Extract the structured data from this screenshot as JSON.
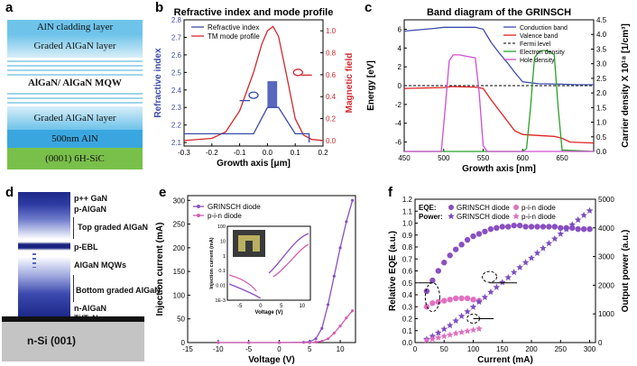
{
  "panel_a": {
    "label": "a",
    "layers": [
      "AlN cladding layer",
      "Graded AlGaN layer",
      "AlGaN/ AlGaN MQW",
      "Graded AlGaN layer",
      "500nm AlN",
      "(0001) 6H-SiC"
    ]
  },
  "panel_d": {
    "label": "d",
    "layers": [
      "p++ GaN",
      "p-AlGaN",
      "Top graded AlGaN",
      "p-EBL",
      "AlGaN MQWs",
      "Bottom graded AlGaN",
      "n-AlGaN",
      "Ti/TaN",
      "n-Si (001)"
    ]
  },
  "chart_data": [
    {
      "panel": "b",
      "type": "line",
      "title": "Refractive index and mode profile",
      "xlabel": "Growth axis [μm]",
      "ylabel": "Refractive index",
      "y2label": "Magnetic field",
      "xlim": [
        -0.3,
        0.2
      ],
      "ylim": [
        2.08,
        2.8
      ],
      "y2lim": [
        -0.05,
        1.1
      ],
      "xticks": [
        "-0.3",
        "-0.2",
        "-0.1",
        "0.0",
        "0.1",
        "0.2"
      ],
      "yticks": [
        "2.1",
        "2.2",
        "2.3",
        "2.4",
        "2.5",
        "2.6",
        "2.7",
        "2.8"
      ],
      "y2ticks": [
        "0.0",
        "0.2",
        "0.4",
        "0.6",
        "0.8",
        "1.0"
      ],
      "legend": [
        "Refractive index",
        "TM mode profile"
      ],
      "series": [
        {
          "name": "Refractive index",
          "axis": "left",
          "color": "#3a4aa8",
          "x": [
            -0.3,
            -0.05,
            0.0,
            0.0,
            0.04,
            0.04,
            0.1,
            0.15,
            0.15
          ],
          "y": [
            2.15,
            2.15,
            2.3,
            2.3,
            2.3,
            2.3,
            2.15,
            2.15,
            2.1
          ]
        },
        {
          "name": "TM mode profile",
          "axis": "right",
          "color": "#d0282e",
          "x": [
            -0.3,
            -0.2,
            -0.15,
            -0.1,
            -0.05,
            -0.02,
            0.0,
            0.02,
            0.04,
            0.07,
            0.1,
            0.13,
            0.16,
            0.2
          ],
          "y": [
            0.0,
            0.02,
            0.08,
            0.27,
            0.62,
            0.88,
            1.0,
            1.04,
            0.95,
            0.58,
            0.2,
            0.05,
            0.01,
            0.0
          ]
        }
      ]
    },
    {
      "panel": "c",
      "type": "line",
      "title": "Band diagram of the GRINSCH",
      "xlabel": "Growth axis [nm]",
      "ylabel": "Energy [eV]",
      "y2label": "Carrier density X 10¹⁸ [1/cm³]",
      "xlim": [
        450,
        690
      ],
      "ylim": [
        -7,
        7
      ],
      "y2lim": [
        0,
        4.5
      ],
      "xticks": [
        "450",
        "500",
        "550",
        "600",
        "650"
      ],
      "yticks": [
        "-6",
        "-4",
        "-2",
        "0",
        "2",
        "4",
        "6"
      ],
      "y2ticks": [
        "0.0",
        "0.5",
        "1.0",
        "1.5",
        "2.0",
        "2.5",
        "3.0",
        "3.5",
        "4.0",
        "4.5"
      ],
      "legend": [
        "Conduction band",
        "Valence band",
        "Fermi level",
        "Electron density",
        "Hole density"
      ],
      "series": [
        {
          "name": "Conduction band",
          "axis": "left",
          "color": "#3b4bb0",
          "x": [
            450,
            490,
            500,
            540,
            550,
            560,
            570,
            580,
            590,
            600,
            620,
            650,
            670,
            690
          ],
          "y": [
            5.8,
            6.1,
            6.2,
            6.2,
            6.0,
            4.6,
            3.5,
            2.5,
            1.4,
            0.4,
            0.2,
            0.15,
            0.1,
            0.1
          ]
        },
        {
          "name": "Valence band",
          "axis": "left",
          "color": "#e02020",
          "x": [
            450,
            500,
            510,
            540,
            550,
            560,
            570,
            580,
            590,
            600,
            620,
            640,
            650,
            660,
            690
          ],
          "y": [
            -0.3,
            -0.2,
            -0.1,
            -0.15,
            -0.3,
            -1.5,
            -2.6,
            -3.7,
            -4.8,
            -5.2,
            -5.3,
            -5.4,
            -5.6,
            -6.0,
            -6.1
          ]
        },
        {
          "name": "Fermi level",
          "axis": "left",
          "color": "#333333",
          "dashed": true,
          "x": [
            450,
            690
          ],
          "y": [
            0.0,
            0.0
          ]
        },
        {
          "name": "Electron density",
          "axis": "right",
          "color": "#2aa02a",
          "x": [
            450,
            600,
            605,
            610,
            615,
            620,
            625,
            630,
            635,
            640,
            645,
            650,
            690
          ],
          "y": [
            0.0,
            0.0,
            0.1,
            1.5,
            3.2,
            3.4,
            3.45,
            3.45,
            3.4,
            3.3,
            1.5,
            0.05,
            0.0
          ]
        },
        {
          "name": "Hole density",
          "axis": "right",
          "color": "#d04fd0",
          "x": [
            450,
            497,
            502,
            507,
            512,
            520,
            530,
            540,
            545,
            550,
            555,
            690
          ],
          "y": [
            0.0,
            0.0,
            1.5,
            3.1,
            3.3,
            3.3,
            3.25,
            3.2,
            2.0,
            0.2,
            0.0,
            0.0
          ]
        }
      ]
    },
    {
      "panel": "e",
      "type": "line",
      "xlabel": "Voltage (V)",
      "ylabel": "Injection current (mA)",
      "xlim": [
        -15,
        12.5
      ],
      "ylim": [
        0,
        310
      ],
      "xticks": [
        "-15",
        "-10",
        "-5",
        "0",
        "5",
        "10"
      ],
      "yticks": [
        "0",
        "50",
        "100",
        "150",
        "200",
        "250",
        "300"
      ],
      "legend": [
        "GRINSCH diode",
        "p-i-n diode"
      ],
      "series": [
        {
          "name": "GRINSCH diode",
          "color": "#8a4fc0",
          "x": [
            -10,
            -5,
            0,
            4,
            5,
            6,
            7,
            8,
            9,
            10,
            11,
            12
          ],
          "y": [
            0,
            0,
            0,
            0.5,
            2,
            8,
            30,
            80,
            140,
            200,
            255,
            300
          ]
        },
        {
          "name": "p-i-n diode",
          "color": "#d15fae",
          "x": [
            -10,
            -5,
            0,
            5,
            6,
            7,
            8,
            9,
            10,
            11,
            12
          ],
          "y": [
            0,
            0,
            0,
            0,
            1,
            3,
            8,
            20,
            35,
            52,
            67
          ]
        }
      ],
      "inset": {
        "xlabel": "Voltage (V)",
        "ylabel": "Injection current (mA)",
        "xticks": [
          "-5",
          "0",
          "5",
          "10"
        ],
        "yticks": [
          "1E-3",
          "0.01",
          "0.1",
          "1",
          "10",
          "100"
        ]
      }
    },
    {
      "panel": "f",
      "type": "scatter",
      "xlabel": "Current (mA)",
      "ylabel": "Relative EQE (a.u.)",
      "y2label": "Output power (a.u.)",
      "xlim": [
        0,
        310
      ],
      "ylim": [
        0,
        1.2
      ],
      "y2lim": [
        0,
        5000
      ],
      "xticks": [
        "0",
        "50",
        "100",
        "150",
        "200",
        "250",
        "300"
      ],
      "yticks": [
        "0.0",
        "0.1",
        "0.2",
        "0.3",
        "0.4",
        "0.5",
        "0.6",
        "0.7",
        "0.8",
        "0.9",
        "1.0",
        "1.1",
        "1.2"
      ],
      "y2ticks": [
        "0",
        "1000",
        "2000",
        "3000",
        "4000",
        "5000"
      ],
      "legend": {
        "eqe_label": "EQE:",
        "power_label": "Power:",
        "series_a": "GRINSCH diode",
        "series_b": "p-i-n diode"
      },
      "series": [
        {
          "name": "EQE GRINSCH diode",
          "axis": "left",
          "marker": "circle",
          "color": "#8a4fc0",
          "x": [
            20,
            30,
            40,
            50,
            60,
            70,
            80,
            90,
            100,
            110,
            120,
            130,
            140,
            150,
            160,
            170,
            180,
            190,
            200,
            210,
            220,
            230,
            240,
            250,
            260,
            270,
            280,
            290,
            300
          ],
          "y": [
            0.43,
            0.52,
            0.6,
            0.67,
            0.73,
            0.78,
            0.82,
            0.86,
            0.89,
            0.91,
            0.93,
            0.95,
            0.96,
            0.97,
            0.97,
            0.98,
            0.98,
            0.97,
            0.97,
            0.97,
            0.97,
            0.97,
            0.97,
            0.96,
            0.96,
            0.96,
            0.95,
            0.95,
            0.95
          ]
        },
        {
          "name": "EQE p-i-n diode",
          "axis": "left",
          "marker": "circle",
          "color": "#e070c0",
          "x": [
            20,
            30,
            40,
            50,
            60,
            70,
            80,
            90,
            100,
            110
          ],
          "y": [
            0.3,
            0.33,
            0.34,
            0.35,
            0.36,
            0.37,
            0.37,
            0.37,
            0.36,
            0.35
          ]
        },
        {
          "name": "Power GRINSCH diode",
          "axis": "right",
          "marker": "star",
          "color": "#7a4fc0",
          "x": [
            20,
            30,
            40,
            50,
            60,
            70,
            80,
            90,
            100,
            110,
            120,
            130,
            140,
            150,
            160,
            170,
            180,
            190,
            200,
            210,
            220,
            230,
            240,
            250,
            260,
            270,
            280,
            290,
            300
          ],
          "y": [
            120,
            220,
            340,
            470,
            600,
            760,
            920,
            1080,
            1240,
            1420,
            1580,
            1760,
            1930,
            2100,
            2270,
            2450,
            2620,
            2790,
            2950,
            3120,
            3290,
            3460,
            3620,
            3790,
            3950,
            4110,
            4280,
            4440,
            4600
          ]
        },
        {
          "name": "Power p-i-n diode",
          "axis": "right",
          "marker": "star",
          "color": "#e070c0",
          "x": [
            20,
            30,
            40,
            50,
            60,
            70,
            80,
            90,
            100,
            110
          ],
          "y": [
            80,
            120,
            170,
            220,
            270,
            320,
            360,
            400,
            440,
            480
          ]
        }
      ]
    }
  ]
}
